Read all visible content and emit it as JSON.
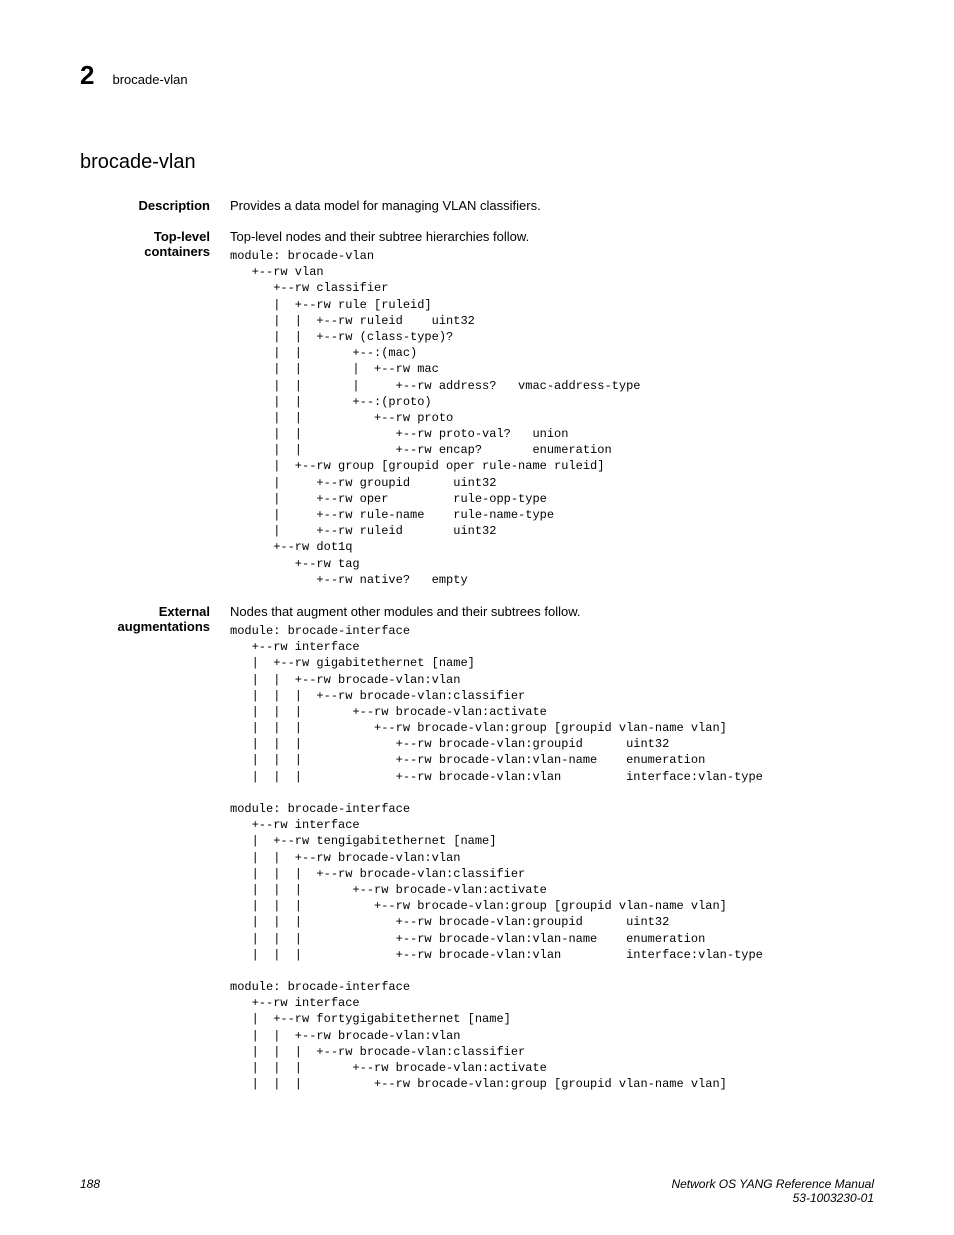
{
  "header": {
    "chapter_num": "2",
    "running_head": "brocade-vlan"
  },
  "section_title": "brocade-vlan",
  "description": {
    "label": "Description",
    "text": "Provides a data model for managing VLAN classifiers."
  },
  "toplevel": {
    "label_line1": "Top-level",
    "label_line2": "containers",
    "intro": "Top-level nodes and their subtree hierarchies follow.",
    "tree": "module: brocade-vlan\n   +--rw vlan\n      +--rw classifier\n      |  +--rw rule [ruleid]\n      |  |  +--rw ruleid    uint32\n      |  |  +--rw (class-type)?\n      |  |       +--:(mac)\n      |  |       |  +--rw mac\n      |  |       |     +--rw address?   vmac-address-type\n      |  |       +--:(proto)\n      |  |          +--rw proto\n      |  |             +--rw proto-val?   union\n      |  |             +--rw encap?       enumeration\n      |  +--rw group [groupid oper rule-name ruleid]\n      |     +--rw groupid      uint32\n      |     +--rw oper         rule-opp-type\n      |     +--rw rule-name    rule-name-type\n      |     +--rw ruleid       uint32\n      +--rw dot1q\n         +--rw tag\n            +--rw native?   empty"
  },
  "external": {
    "label_line1": "External",
    "label_line2": "augmentations",
    "intro": "Nodes that augment other modules and their subtrees follow.",
    "tree": "module: brocade-interface\n   +--rw interface\n   |  +--rw gigabitethernet [name]\n   |  |  +--rw brocade-vlan:vlan\n   |  |  |  +--rw brocade-vlan:classifier\n   |  |  |       +--rw brocade-vlan:activate\n   |  |  |          +--rw brocade-vlan:group [groupid vlan-name vlan]\n   |  |  |             +--rw brocade-vlan:groupid      uint32\n   |  |  |             +--rw brocade-vlan:vlan-name    enumeration\n   |  |  |             +--rw brocade-vlan:vlan         interface:vlan-type\n\nmodule: brocade-interface\n   +--rw interface\n   |  +--rw tengigabitethernet [name]\n   |  |  +--rw brocade-vlan:vlan\n   |  |  |  +--rw brocade-vlan:classifier\n   |  |  |       +--rw brocade-vlan:activate\n   |  |  |          +--rw brocade-vlan:group [groupid vlan-name vlan]\n   |  |  |             +--rw brocade-vlan:groupid      uint32\n   |  |  |             +--rw brocade-vlan:vlan-name    enumeration\n   |  |  |             +--rw brocade-vlan:vlan         interface:vlan-type\n\nmodule: brocade-interface\n   +--rw interface\n   |  +--rw fortygigabitethernet [name]\n   |  |  +--rw brocade-vlan:vlan\n   |  |  |  +--rw brocade-vlan:classifier\n   |  |  |       +--rw brocade-vlan:activate\n   |  |  |          +--rw brocade-vlan:group [groupid vlan-name vlan]"
  },
  "footer": {
    "page_num": "188",
    "doc_title": "Network OS YANG Reference Manual",
    "doc_id": "53-1003230-01"
  }
}
